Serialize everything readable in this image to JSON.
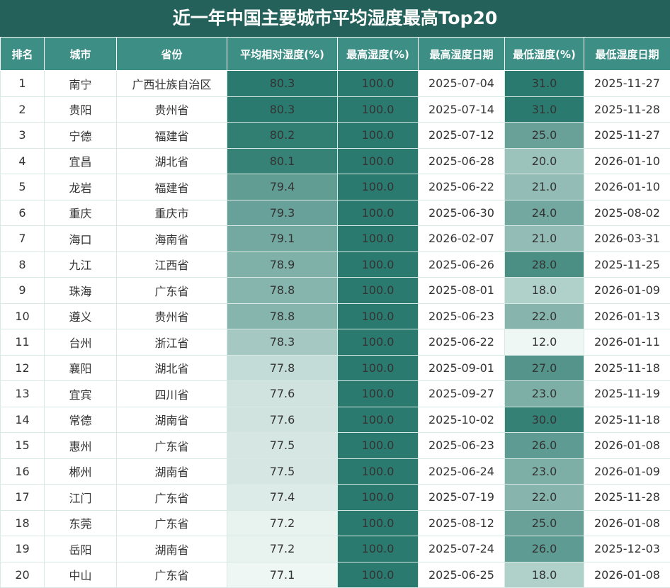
{
  "title": "近一年中国主要城市平均湿度最高Top20",
  "table": {
    "header": [
      "排名",
      "城市",
      "省份",
      "平均相对湿度(%)",
      "最高湿度(%)",
      "最高湿度日期",
      "最低湿度(%)",
      "最低湿度日期"
    ],
    "rows": [
      [
        "1",
        "南宁",
        "广西壮族自治区",
        "80.3",
        "100.0",
        "2025-07-04",
        "31.0",
        "2025-11-27"
      ],
      [
        "2",
        "贵阳",
        "贵州省",
        "80.3",
        "100.0",
        "2025-07-14",
        "31.0",
        "2025-11-28"
      ],
      [
        "3",
        "宁德",
        "福建省",
        "80.2",
        "100.0",
        "2025-07-12",
        "25.0",
        "2025-11-27"
      ],
      [
        "4",
        "宜昌",
        "湖北省",
        "80.1",
        "100.0",
        "2025-06-28",
        "20.0",
        "2026-01-10"
      ],
      [
        "5",
        "龙岩",
        "福建省",
        "79.4",
        "100.0",
        "2025-06-22",
        "21.0",
        "2026-01-10"
      ],
      [
        "6",
        "重庆",
        "重庆市",
        "79.3",
        "100.0",
        "2025-06-30",
        "24.0",
        "2025-08-02"
      ],
      [
        "7",
        "海口",
        "海南省",
        "79.1",
        "100.0",
        "2026-02-07",
        "21.0",
        "2026-03-31"
      ],
      [
        "8",
        "九江",
        "江西省",
        "78.9",
        "100.0",
        "2025-06-26",
        "28.0",
        "2025-11-25"
      ],
      [
        "9",
        "珠海",
        "广东省",
        "78.8",
        "100.0",
        "2025-08-01",
        "18.0",
        "2026-01-09"
      ],
      [
        "10",
        "遵义",
        "贵州省",
        "78.8",
        "100.0",
        "2025-06-23",
        "22.0",
        "2026-01-13"
      ],
      [
        "11",
        "台州",
        "浙江省",
        "78.3",
        "100.0",
        "2025-06-22",
        "12.0",
        "2026-01-11"
      ],
      [
        "12",
        "襄阳",
        "湖北省",
        "77.8",
        "100.0",
        "2025-09-01",
        "27.0",
        "2025-11-18"
      ],
      [
        "13",
        "宜宾",
        "四川省",
        "77.6",
        "100.0",
        "2025-09-27",
        "23.0",
        "2025-11-19"
      ],
      [
        "14",
        "常德",
        "湖南省",
        "77.6",
        "100.0",
        "2025-10-02",
        "30.0",
        "2025-11-18"
      ],
      [
        "15",
        "惠州",
        "广东省",
        "77.5",
        "100.0",
        "2025-06-23",
        "26.0",
        "2026-01-08"
      ],
      [
        "16",
        "郴州",
        "湖南省",
        "77.5",
        "100.0",
        "2025-06-24",
        "23.0",
        "2026-01-09"
      ],
      [
        "17",
        "江门",
        "广东省",
        "77.4",
        "100.0",
        "2025-07-19",
        "22.0",
        "2025-11-28"
      ],
      [
        "18",
        "东莞",
        "广东省",
        "77.2",
        "100.0",
        "2025-08-12",
        "25.0",
        "2026-01-08"
      ],
      [
        "19",
        "岳阳",
        "湖南省",
        "77.2",
        "100.0",
        "2025-07-24",
        "26.0",
        "2025-12-03"
      ],
      [
        "20",
        "中山",
        "广东省",
        "77.1",
        "100.0",
        "2025-06-25",
        "18.0",
        "2026-01-08"
      ]
    ]
  }
}
